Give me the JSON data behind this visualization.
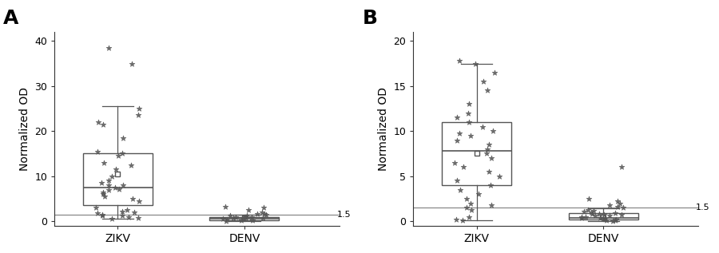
{
  "panel_A": {
    "label": "A",
    "ylabel": "Normalized OD",
    "ylim": [
      -1,
      42
    ],
    "yticks": [
      0,
      10,
      20,
      30,
      40
    ],
    "threshold": 1.5,
    "groups": {
      "ZIKV": {
        "q1": 3.5,
        "median": 7.5,
        "q3": 15.0,
        "whisker_low": 0.5,
        "whisker_high": 25.5,
        "mean": 10.5,
        "scatter": [
          0.5,
          0.8,
          1.0,
          1.2,
          1.3,
          1.5,
          1.8,
          2.0,
          2.2,
          2.5,
          3.0,
          4.5,
          5.0,
          5.5,
          6.0,
          6.5,
          7.0,
          7.2,
          7.5,
          8.0,
          8.0,
          8.5,
          9.0,
          10.0,
          11.5,
          12.5,
          13.0,
          14.5,
          15.0,
          15.5,
          18.5,
          21.5,
          22.0,
          23.5,
          25.0,
          35.0,
          38.5
        ]
      },
      "DENV": {
        "q1": 0.3,
        "median": 0.6,
        "q3": 1.0,
        "whisker_low": 0.1,
        "whisker_high": 1.5,
        "mean": 0.7,
        "scatter": [
          0.1,
          0.2,
          0.3,
          0.4,
          0.5,
          0.6,
          0.7,
          0.8,
          0.9,
          1.0,
          1.0,
          1.2,
          1.3,
          1.5,
          1.6,
          1.7,
          2.0,
          2.5,
          3.0,
          3.2
        ]
      }
    }
  },
  "panel_B": {
    "label": "B",
    "ylabel": "Normalized OD",
    "ylim": [
      -0.5,
      21
    ],
    "yticks": [
      0,
      5,
      10,
      15,
      20
    ],
    "threshold": 1.5,
    "groups": {
      "ZIKV": {
        "q1": 4.0,
        "median": 7.8,
        "q3": 11.0,
        "whisker_low": 0.1,
        "whisker_high": 17.5,
        "mean": 7.5,
        "scatter": [
          0.1,
          0.2,
          0.5,
          1.3,
          1.5,
          1.8,
          2.0,
          2.5,
          3.0,
          3.5,
          4.0,
          4.5,
          5.0,
          5.5,
          6.0,
          6.5,
          7.0,
          7.5,
          8.0,
          8.5,
          9.0,
          9.5,
          9.8,
          10.0,
          10.5,
          11.0,
          11.5,
          12.0,
          13.0,
          14.5,
          15.5,
          16.5,
          17.5,
          17.8
        ]
      },
      "DENV": {
        "q1": 0.2,
        "median": 0.4,
        "q3": 0.9,
        "whisker_low": 0.05,
        "whisker_high": 1.4,
        "mean": 0.5,
        "scatter": [
          0.05,
          0.1,
          0.1,
          0.2,
          0.3,
          0.3,
          0.4,
          0.4,
          0.5,
          0.5,
          0.6,
          0.6,
          0.7,
          0.7,
          0.8,
          0.8,
          0.9,
          1.0,
          1.1,
          1.2,
          1.3,
          1.5,
          1.6,
          1.8,
          2.0,
          2.2,
          2.5,
          6.0
        ]
      }
    }
  },
  "box_color": "#555555",
  "scatter_color": "#555555",
  "threshold_color": "#888888",
  "label_fontsize": 18,
  "tick_fontsize": 9,
  "xlabel_fontsize": 10,
  "ylabel_fontsize": 10,
  "box_width": 0.55,
  "scatter_jitter": 0.18,
  "marker": "*",
  "marker_size": 5
}
